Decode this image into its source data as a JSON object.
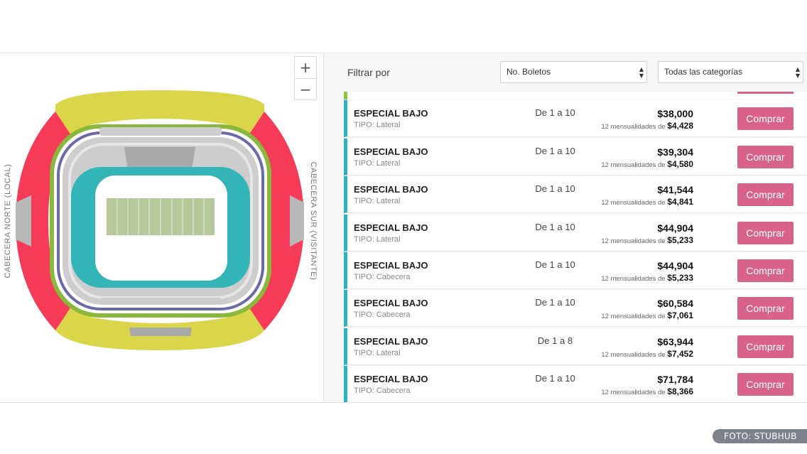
{
  "map": {
    "zoom_in": "+",
    "zoom_out": "−",
    "label_left": "CABECERA NORTE (LOCAL)",
    "label_right": "CABECERA SUR (VISITANTE)",
    "colors": {
      "cabecera": "#f53b57",
      "lateral_upper": "#dbd54a",
      "green_ring": "#8ab83c",
      "purple_ring": "#6b6aa8",
      "lower": "#33b5b8",
      "gray": "#cdcdcd",
      "field": "#b6c79a"
    }
  },
  "filter": {
    "label": "Filtrar por",
    "tickets_select": "No. Boletos",
    "category_select": "Todas las categorías"
  },
  "listings": [
    {
      "name": "ESPECIAL BAJO",
      "type": "TIPO: Lateral",
      "qty": "De 1 a 10",
      "price": "$38,000",
      "install_label": "12 mensualidades de",
      "install_amount": "$4,428",
      "button": "Comprar"
    },
    {
      "name": "ESPECIAL BAJO",
      "type": "TIPO: Lateral",
      "qty": "De 1 a 10",
      "price": "$39,304",
      "install_label": "12 mensualidades de",
      "install_amount": "$4,580",
      "button": "Comprar"
    },
    {
      "name": "ESPECIAL BAJO",
      "type": "TIPO: Lateral",
      "qty": "De 1 a 10",
      "price": "$41,544",
      "install_label": "12 mensualidades de",
      "install_amount": "$4,841",
      "button": "Comprar"
    },
    {
      "name": "ESPECIAL BAJO",
      "type": "TIPO: Lateral",
      "qty": "De 1 a 10",
      "price": "$44,904",
      "install_label": "12 mensualidades de",
      "install_amount": "$5,233",
      "button": "Comprar"
    },
    {
      "name": "ESPECIAL BAJO",
      "type": "TIPO: Cabecera",
      "qty": "De 1 a 10",
      "price": "$44,904",
      "install_label": "12 mensualidades de",
      "install_amount": "$5,233",
      "button": "Comprar"
    },
    {
      "name": "ESPECIAL BAJO",
      "type": "TIPO: Cabecera",
      "qty": "De 1 a 10",
      "price": "$60,584",
      "install_label": "12 mensualidades de",
      "install_amount": "$7,061",
      "button": "Comprar"
    },
    {
      "name": "ESPECIAL BAJO",
      "type": "TIPO: Lateral",
      "qty": "De 1 a 8",
      "price": "$63,944",
      "install_label": "12 mensualidades de",
      "install_amount": "$7,452",
      "button": "Comprar"
    },
    {
      "name": "ESPECIAL BAJO",
      "type": "TIPO: Cabecera",
      "qty": "De 1 a 10",
      "price": "$71,784",
      "install_label": "12 mensualidades de",
      "install_amount": "$8,366",
      "button": "Comprar"
    }
  ],
  "credit": "FOTO: STUBHUB"
}
